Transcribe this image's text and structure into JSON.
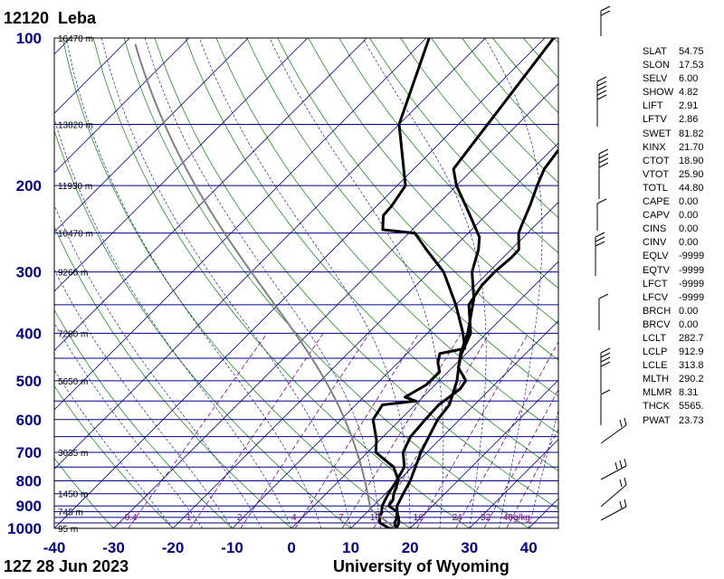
{
  "station": {
    "id": "12120",
    "name": "Leba"
  },
  "time": "12Z 28 Jun 2023",
  "source": "University of Wyoming",
  "chart_data": {
    "type": "line",
    "title": "12120 Leba",
    "subtitle": "12Z 28 Jun 2023",
    "xlabel": "",
    "ylabel": "",
    "x_ticks": [
      -40,
      -30,
      -20,
      -10,
      0,
      10,
      20,
      30,
      40
    ],
    "xlim": [
      -40,
      45
    ],
    "y_scale": "log",
    "ylim": [
      1000,
      100
    ],
    "p_ticks": [
      100,
      200,
      300,
      400,
      500,
      600,
      700,
      800,
      900,
      1000
    ],
    "height_labels": [
      {
        "p": 100,
        "label": "16470 m"
      },
      {
        "p": 150,
        "label": "13820 m"
      },
      {
        "p": 200,
        "label": "11930 m"
      },
      {
        "p": 250,
        "label": "10470 m"
      },
      {
        "p": 300,
        "label": "9260 m"
      },
      {
        "p": 400,
        "label": "7280 m"
      },
      {
        "p": 500,
        "label": "5650 m"
      },
      {
        "p": 700,
        "label": "3035 m"
      },
      {
        "p": 850,
        "label": "1450 m"
      },
      {
        "p": 925,
        "label": "745 m"
      },
      {
        "p": 1000,
        "label": "95 m"
      }
    ],
    "mixing_ratio_labels": [
      "0.4",
      "1",
      "2",
      "4",
      "7",
      "10",
      "16",
      "24",
      "32",
      "40g/kg"
    ],
    "series": [
      {
        "color": "#000000",
        "points": [
          [
            1002,
            17.5
          ],
          [
            1000,
            16.5
          ],
          [
            975,
            14
          ],
          [
            950,
            13
          ],
          [
            925,
            12.4
          ],
          [
            900,
            11.5
          ],
          [
            875,
            11
          ],
          [
            850,
            10.5
          ],
          [
            800,
            9.7
          ],
          [
            750,
            8.7
          ],
          [
            700,
            6.0
          ],
          [
            650,
            4.6
          ],
          [
            600,
            4.2
          ],
          [
            560,
            4.0
          ],
          [
            520,
            4.9
          ],
          [
            500,
            4.5
          ],
          [
            470,
            1.0
          ],
          [
            440,
            -0.8
          ],
          [
            400,
            -2.7
          ],
          [
            350,
            -7.8
          ],
          [
            320,
            -8.9
          ],
          [
            300,
            -9.0
          ],
          [
            280,
            -8.6
          ],
          [
            270,
            -8.7
          ],
          [
            250,
            -11.5
          ],
          [
            240,
            -12.4
          ],
          [
            220,
            -14.2
          ],
          [
            200,
            -16.4
          ],
          [
            185,
            -18.0
          ],
          [
            160,
            -19.3
          ],
          [
            140,
            -20.8
          ],
          [
            100,
            -25.3
          ]
        ]
      },
      {
        "color": "#000000",
        "points": [
          [
            1002,
            17.5
          ],
          [
            1000,
            17.5
          ],
          [
            975,
            16.5
          ],
          [
            950,
            15.9
          ],
          [
            925,
            15.0
          ],
          [
            900,
            14.0
          ],
          [
            850,
            13.0
          ],
          [
            800,
            12.0
          ],
          [
            700,
            9.0
          ],
          [
            650,
            7.7
          ],
          [
            600,
            6.3
          ],
          [
            560,
            5.8
          ],
          [
            500,
            3.0
          ],
          [
            440,
            -1.0
          ],
          [
            400,
            -3.2
          ],
          [
            340,
            -8.0
          ],
          [
            300,
            -12.8
          ],
          [
            270,
            -15.5
          ],
          [
            255,
            -17.4
          ],
          [
            240,
            -20.5
          ],
          [
            220,
            -25.0
          ],
          [
            200,
            -30.0
          ],
          [
            185,
            -33.3
          ],
          [
            100,
            -38.5
          ]
        ]
      },
      {
        "color": "#000000",
        "points": [
          [
            1000,
            17.7
          ],
          [
            975,
            17.2
          ],
          [
            950,
            16.2
          ],
          [
            925,
            15.0
          ],
          [
            900,
            12.6
          ],
          [
            875,
            12.3
          ],
          [
            850,
            11.4
          ],
          [
            800,
            10.0
          ],
          [
            750,
            6.9
          ],
          [
            700,
            1.4
          ],
          [
            660,
            -0.6
          ],
          [
            600,
            -4.6
          ],
          [
            560,
            -5.5
          ],
          [
            550,
            -0.5
          ],
          [
            540,
            -3.0
          ],
          [
            510,
            -1.5
          ],
          [
            480,
            -1.4
          ],
          [
            460,
            -3.2
          ],
          [
            440,
            -4.5
          ],
          [
            430,
            -1.1
          ],
          [
            400,
            -4.0
          ],
          [
            350,
            -10.0
          ],
          [
            300,
            -17.6
          ],
          [
            270,
            -24.3
          ],
          [
            250,
            -29.0
          ],
          [
            246,
            -35.0
          ],
          [
            230,
            -37.3
          ],
          [
            220,
            -37.5
          ],
          [
            200,
            -38.6
          ],
          [
            150,
            -50.0
          ],
          [
            100,
            -59.5
          ]
        ]
      }
    ]
  },
  "indices": [
    {
      "k": "SLAT",
      "v": "54.75"
    },
    {
      "k": "SLON",
      "v": "17.53"
    },
    {
      "k": "SELV",
      "v": "6.00"
    },
    {
      "k": "SHOW",
      "v": "4.82"
    },
    {
      "k": "LIFT",
      "v": "2.91"
    },
    {
      "k": "LFTV",
      "v": "2.86"
    },
    {
      "k": "SWET",
      "v": "81.82"
    },
    {
      "k": "KINX",
      "v": "21.70"
    },
    {
      "k": "CTOT",
      "v": "18.90"
    },
    {
      "k": "VTOT",
      "v": "25.90"
    },
    {
      "k": "TOTL",
      "v": "44.80"
    },
    {
      "k": "CAPE",
      "v": "0.00"
    },
    {
      "k": "CAPV",
      "v": "0.00"
    },
    {
      "k": "CINS",
      "v": "0.00"
    },
    {
      "k": "CINV",
      "v": "0.00"
    },
    {
      "k": "EQLV",
      "v": "-9999"
    },
    {
      "k": "EQTV",
      "v": "-9999"
    },
    {
      "k": "LFCT",
      "v": "-9999"
    },
    {
      "k": "LFCV",
      "v": "-9999"
    },
    {
      "k": "BRCH",
      "v": "0.00"
    },
    {
      "k": "BRCV",
      "v": "0.00"
    },
    {
      "k": "LCLT",
      "v": "282.7"
    },
    {
      "k": "LCLP",
      "v": "912.9"
    },
    {
      "k": "LCLE",
      "v": "313.8"
    },
    {
      "k": "MLTH",
      "v": "290.2"
    },
    {
      "k": "MLMR",
      "v": "8.31"
    },
    {
      "k": "THCK",
      "v": "5565."
    },
    {
      "k": "PWAT",
      "v": "23.73"
    }
  ],
  "colors": {
    "grid": "#000080",
    "dry_adiabat": "#008000",
    "mixing_ratio": "#800080",
    "profile": "#000000",
    "parcel": "#808080"
  }
}
